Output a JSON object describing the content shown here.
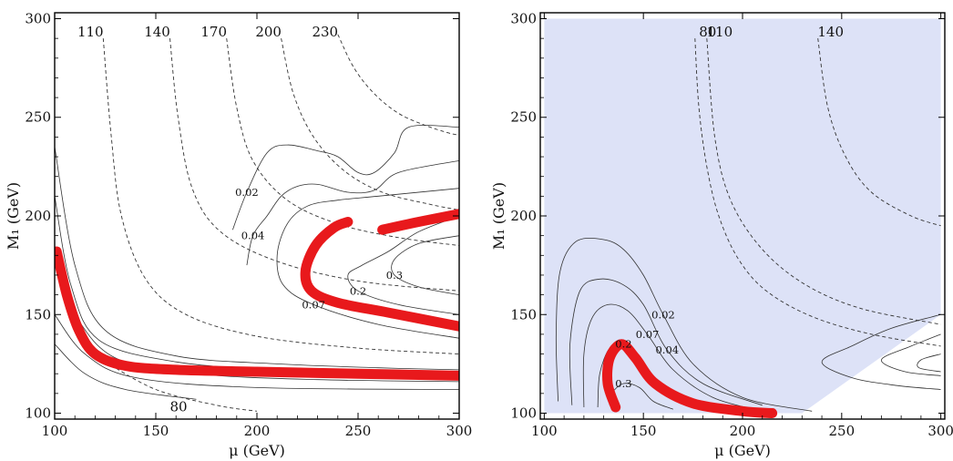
{
  "chart_data": [
    {
      "type": "contour",
      "xlabel": "μ (GeV)",
      "ylabel": "M₁ (GeV)",
      "xlim": [
        100,
        300
      ],
      "ylim": [
        97,
        303
      ],
      "xticks": [
        100,
        150,
        200,
        250,
        300
      ],
      "yticks": [
        100,
        150,
        200,
        250,
        300
      ],
      "shaded_region": false,
      "mass_contours": [
        {
          "label": "80",
          "points": [
            [
              125,
              126
            ],
            [
              150,
              112
            ],
            [
              180,
              104
            ],
            [
              200,
              101
            ]
          ]
        },
        {
          "label": "110",
          "points": [
            [
              124,
              290
            ],
            [
              128,
              240
            ],
            [
              133,
              200
            ],
            [
              145,
              168
            ],
            [
              165,
              150
            ],
            [
              200,
              139
            ],
            [
              250,
              133
            ],
            [
              300,
              130
            ]
          ]
        },
        {
          "label": "140",
          "points": [
            [
              157,
              290
            ],
            [
              161,
              250
            ],
            [
              168,
              214
            ],
            [
              182,
              192
            ],
            [
              210,
              177
            ],
            [
              250,
              167
            ],
            [
              300,
              162
            ]
          ]
        },
        {
          "label": "170",
          "points": [
            [
              185,
              290
            ],
            [
              190,
              255
            ],
            [
              198,
              228
            ],
            [
              215,
              208
            ],
            [
              240,
              196
            ],
            [
              270,
              189
            ],
            [
              300,
              185
            ]
          ]
        },
        {
          "label": "200",
          "points": [
            [
              212,
              290
            ],
            [
              218,
              262
            ],
            [
              228,
              240
            ],
            [
              243,
              223
            ],
            [
              262,
              212
            ],
            [
              285,
              206
            ],
            [
              300,
              203
            ]
          ]
        },
        {
          "label": "230",
          "points": [
            [
              240,
              292
            ],
            [
              248,
              275
            ],
            [
              258,
              262
            ],
            [
              270,
              252
            ],
            [
              283,
              246
            ],
            [
              295,
              242
            ],
            [
              300,
              241
            ]
          ]
        }
      ],
      "density_contours": [
        {
          "label": "0.02",
          "points": [
            [
              100,
              235
            ],
            [
              110,
              175
            ],
            [
              125,
              142
            ],
            [
              160,
              129
            ],
            [
              210,
              125
            ],
            [
              260,
              123
            ],
            [
              300,
              122
            ]
          ]
        },
        {
          "label": "0.04",
          "points": [
            [
              100,
              210
            ],
            [
              108,
              165
            ],
            [
              122,
              137
            ],
            [
              160,
              126
            ],
            [
              210,
              122
            ],
            [
              260,
              121
            ],
            [
              300,
              120
            ]
          ]
        },
        {
          "label": "0.07",
          "points": [
            [
              100,
              175
            ],
            [
              110,
              150
            ],
            [
              130,
              128
            ],
            [
              170,
              120
            ],
            [
              230,
              117
            ],
            [
              300,
              116
            ]
          ]
        },
        {
          "label": "0.2",
          "points": [
            [
              100,
              150
            ],
            [
              115,
              130
            ],
            [
              140,
              118
            ],
            [
              200,
              113
            ],
            [
              300,
              112
            ]
          ]
        },
        {
          "label": "0.3",
          "points": [
            [
              100,
              135
            ],
            [
              115,
              120
            ],
            [
              135,
              112
            ],
            [
              170,
              107
            ]
          ]
        },
        {
          "label": "0.02",
          "points": [
            [
              300,
              245
            ],
            [
              275,
              245
            ],
            [
              268,
              232
            ],
            [
              258,
              222
            ],
            [
              250,
              222
            ],
            [
              240,
              230
            ],
            [
              230,
              233
            ],
            [
              215,
              236
            ],
            [
              205,
              232
            ],
            [
              195,
              212
            ],
            [
              188,
              193
            ]
          ]
        },
        {
          "label": "0.04",
          "points": [
            [
              300,
              228
            ],
            [
              270,
              222
            ],
            [
              258,
              213
            ],
            [
              245,
              212
            ],
            [
              230,
              216
            ],
            [
              220,
              215
            ],
            [
              212,
              210
            ],
            [
              205,
              200
            ],
            [
              198,
              190
            ],
            [
              195,
              175
            ]
          ]
        },
        {
          "label": "0.07",
          "points": [
            [
              300,
              214
            ],
            [
              260,
              210
            ],
            [
              240,
              208
            ],
            [
              225,
              205
            ],
            [
              215,
              196
            ],
            [
              210,
              180
            ],
            [
              213,
              165
            ],
            [
              228,
              155
            ],
            [
              260,
              145
            ],
            [
              300,
              138
            ]
          ]
        },
        {
          "label": "0.2",
          "points": [
            [
              300,
              200
            ],
            [
              280,
              192
            ],
            [
              265,
              182
            ],
            [
              252,
              175
            ],
            [
              245,
              170
            ],
            [
              250,
              162
            ],
            [
              270,
              155
            ],
            [
              300,
              150
            ]
          ]
        },
        {
          "label": "0.3",
          "points": [
            [
              300,
              190
            ],
            [
              280,
              186
            ],
            [
              268,
              178
            ],
            [
              268,
              170
            ],
            [
              280,
              164
            ],
            [
              300,
              160
            ]
          ]
        }
      ],
      "red_bands": [
        {
          "points": [
            [
              101,
              182
            ],
            [
              106,
              160
            ],
            [
              112,
              142
            ],
            [
              120,
              130
            ],
            [
              135,
              124
            ],
            [
              160,
              122
            ],
            [
              200,
              121
            ],
            [
              250,
              120
            ],
            [
              300,
              119
            ]
          ]
        },
        {
          "points": [
            [
              245,
              197
            ],
            [
              238,
              194
            ],
            [
              229,
              185
            ],
            [
              224,
              172
            ],
            [
              227,
              162
            ],
            [
              240,
              156
            ],
            [
              265,
              151
            ],
            [
              300,
              144
            ]
          ]
        },
        {
          "points": [
            [
              262,
              193
            ],
            [
              280,
              197
            ],
            [
              300,
              201
            ]
          ]
        }
      ]
    },
    {
      "type": "contour",
      "xlabel": "μ (GeV)",
      "ylabel": "M₁ (GeV)",
      "xlim": [
        98,
        302
      ],
      "ylim": [
        97,
        303
      ],
      "xticks": [
        100,
        150,
        200,
        250,
        300
      ],
      "yticks": [
        100,
        150,
        200,
        250,
        300
      ],
      "shaded_region": true,
      "mass_contours": [
        {
          "label": "80",
          "points": [
            [
              176,
              290
            ],
            [
              178,
              255
            ],
            [
              182,
              225
            ],
            [
              188,
              200
            ],
            [
              198,
              178
            ],
            [
              212,
              162
            ],
            [
              235,
              149
            ],
            [
              265,
              140
            ],
            [
              300,
              134
            ]
          ]
        },
        {
          "label": "110",
          "points": [
            [
              182,
              290
            ],
            [
              186,
              240
            ],
            [
              194,
              208
            ],
            [
              210,
              183
            ],
            [
              232,
              165
            ],
            [
              260,
              153
            ],
            [
              300,
              145
            ]
          ]
        },
        {
          "label": "140",
          "points": [
            [
              238,
              290
            ],
            [
              243,
              255
            ],
            [
              252,
              230
            ],
            [
              265,
              212
            ],
            [
              285,
              200
            ],
            [
              300,
              195
            ]
          ]
        }
      ],
      "density_contours": [
        {
          "label": "0.02",
          "points": [
            [
              107,
              106
            ],
            [
              106,
              140
            ],
            [
              108,
              172
            ],
            [
              116,
              187
            ],
            [
              130,
              188
            ],
            [
              140,
              183
            ],
            [
              150,
              170
            ],
            [
              160,
              150
            ],
            [
              175,
              125
            ],
            [
              200,
              108
            ],
            [
              235,
              101
            ]
          ]
        },
        {
          "label": "0.04",
          "points": [
            [
              114,
              104
            ],
            [
              113,
              135
            ],
            [
              118,
              162
            ],
            [
              128,
              168
            ],
            [
              140,
              165
            ],
            [
              150,
              155
            ],
            [
              162,
              132
            ],
            [
              180,
              115
            ],
            [
              210,
              104
            ]
          ]
        },
        {
          "label": "0.07",
          "points": [
            [
              120,
              103
            ],
            [
              120,
              130
            ],
            [
              124,
              148
            ],
            [
              132,
              155
            ],
            [
              142,
              152
            ],
            [
              152,
              140
            ],
            [
              165,
              122
            ],
            [
              185,
              108
            ],
            [
              210,
              101
            ]
          ]
        },
        {
          "label": "0.2",
          "points": [
            [
              127,
              103
            ],
            [
              128,
              120
            ],
            [
              133,
              133
            ],
            [
              140,
              135
            ],
            [
              148,
              125
            ],
            [
              160,
              113
            ],
            [
              180,
              104
            ]
          ]
        },
        {
          "label": "0.3",
          "points": [
            [
              133,
              104
            ],
            [
              134,
              110
            ],
            [
              140,
              115
            ],
            [
              148,
              113
            ],
            [
              155,
              106
            ],
            [
              165,
              102
            ]
          ]
        },
        {
          "label": "",
          "points": [
            [
              300,
              150
            ],
            [
              275,
              143
            ],
            [
              255,
              134
            ],
            [
              240,
              126
            ],
            [
              255,
              118
            ],
            [
              278,
              114
            ],
            [
              300,
              112
            ]
          ]
        },
        {
          "label": "",
          "points": [
            [
              300,
              140
            ],
            [
              285,
              134
            ],
            [
              270,
              127
            ],
            [
              282,
              121
            ],
            [
              300,
              119
            ]
          ]
        },
        {
          "label": "",
          "points": [
            [
              300,
              130
            ],
            [
              290,
              127
            ],
            [
              289,
              123
            ],
            [
              300,
              121
            ]
          ]
        }
      ],
      "red_bands": [
        {
          "points": [
            [
              136,
              103
            ],
            [
              132,
              115
            ],
            [
              133,
              128
            ],
            [
              139,
              135
            ],
            [
              146,
              128
            ],
            [
              156,
              115
            ],
            [
              175,
              105
            ],
            [
              200,
              101
            ],
            [
              215,
              100
            ]
          ]
        }
      ]
    }
  ]
}
